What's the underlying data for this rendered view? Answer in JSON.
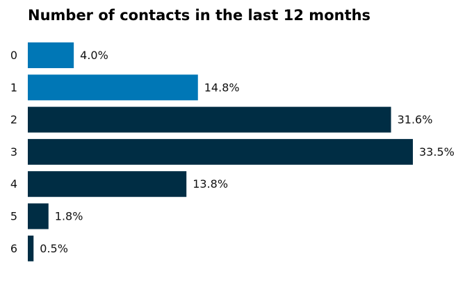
{
  "chart_data": {
    "type": "bar",
    "orientation": "horizontal",
    "title": "Number of contacts in the last 12 months",
    "xlabel": "",
    "ylabel": "",
    "categories": [
      "0",
      "1",
      "2",
      "3",
      "4",
      "5",
      "6"
    ],
    "values": [
      4.0,
      14.8,
      31.6,
      33.5,
      13.8,
      1.8,
      0.5
    ],
    "data_labels": [
      "4.0%",
      "14.8%",
      "31.6%",
      "33.5%",
      "13.8%",
      "1.8%",
      "0.5%"
    ],
    "unit": "%",
    "xlim": [
      0,
      33.5
    ],
    "grid": false,
    "legend": "none",
    "bar_colors": [
      "#0077b6",
      "#0077b6",
      "#002d44",
      "#002d44",
      "#002d44",
      "#002d44",
      "#002d44"
    ]
  }
}
